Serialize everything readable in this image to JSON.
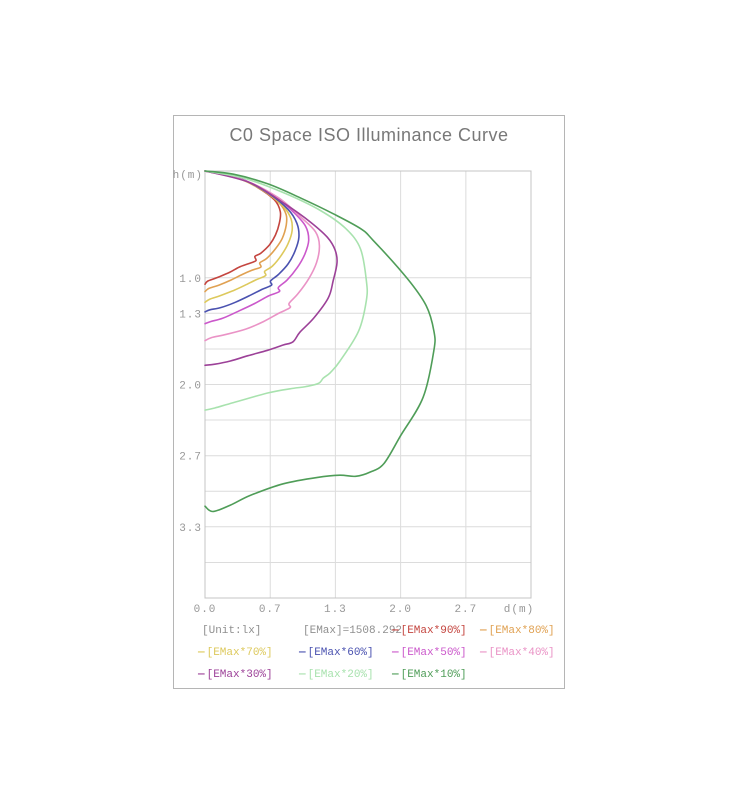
{
  "panel": {
    "title": "C0 Space ISO Illuminance Curve"
  },
  "chart_data": {
    "type": "line",
    "title": "C0 Space ISO Illuminance Curve",
    "xlabel": "d(m)",
    "ylabel": "h(m)",
    "xlim": [
      0,
      3.333
    ],
    "ylim": [
      0,
      4.0
    ],
    "y_axis_downward": true,
    "grid": true,
    "legend_position": "bottom",
    "x_ticks": [
      {
        "v": 0,
        "label": "0.0"
      },
      {
        "v": 0.667,
        "label": "0.7"
      },
      {
        "v": 1.333,
        "label": "1.3"
      },
      {
        "v": 2.0,
        "label": "2.0"
      },
      {
        "v": 2.667,
        "label": "2.7"
      }
    ],
    "y_ticks": [
      {
        "v": 1.0,
        "label": "1.0"
      },
      {
        "v": 1.333,
        "label": "1.3"
      },
      {
        "v": 2.0,
        "label": "2.0"
      },
      {
        "v": 2.667,
        "label": "2.7"
      },
      {
        "v": 3.333,
        "label": "3.3"
      }
    ],
    "x_gridlines": [
      0.667,
      1.333,
      2.0,
      2.667
    ],
    "y_gridlines": [
      1.0,
      1.333,
      1.667,
      2.0,
      2.333,
      2.667,
      3.0,
      3.333,
      3.667
    ],
    "annotations": {
      "unit": "[Unit:lx]",
      "emax": "[EMax]=1508.292"
    },
    "series": [
      {
        "name": "[EMax*90%]",
        "color": "#c4453f",
        "points": [
          [
            0,
            0
          ],
          [
            0.3,
            0.05
          ],
          [
            0.53,
            0.15
          ],
          [
            0.71,
            0.27
          ],
          [
            0.77,
            0.38
          ],
          [
            0.76,
            0.49
          ],
          [
            0.72,
            0.6
          ],
          [
            0.66,
            0.69
          ],
          [
            0.57,
            0.77
          ],
          [
            0.51,
            0.8
          ],
          [
            0.52,
            0.84
          ],
          [
            0.44,
            0.87
          ],
          [
            0.35,
            0.9
          ],
          [
            0.25,
            0.95
          ],
          [
            0.12,
            1.0
          ],
          [
            0.03,
            1.03
          ],
          [
            0,
            1.06
          ]
        ]
      },
      {
        "name": "[EMax*80%]",
        "color": "#e0a152",
        "points": [
          [
            0,
            0
          ],
          [
            0.32,
            0.06
          ],
          [
            0.57,
            0.17
          ],
          [
            0.76,
            0.3
          ],
          [
            0.83,
            0.41
          ],
          [
            0.83,
            0.51
          ],
          [
            0.79,
            0.63
          ],
          [
            0.72,
            0.73
          ],
          [
            0.63,
            0.82
          ],
          [
            0.56,
            0.86
          ],
          [
            0.57,
            0.9
          ],
          [
            0.48,
            0.93
          ],
          [
            0.38,
            0.97
          ],
          [
            0.27,
            1.02
          ],
          [
            0.14,
            1.07
          ],
          [
            0.04,
            1.1
          ],
          [
            0,
            1.13
          ]
        ]
      },
      {
        "name": "[EMax*70%]",
        "color": "#ddc95c",
        "points": [
          [
            0,
            0
          ],
          [
            0.34,
            0.07
          ],
          [
            0.61,
            0.19
          ],
          [
            0.8,
            0.33
          ],
          [
            0.88,
            0.45
          ],
          [
            0.89,
            0.56
          ],
          [
            0.85,
            0.68
          ],
          [
            0.78,
            0.79
          ],
          [
            0.69,
            0.89
          ],
          [
            0.61,
            0.94
          ],
          [
            0.62,
            0.98
          ],
          [
            0.52,
            1.02
          ],
          [
            0.41,
            1.07
          ],
          [
            0.29,
            1.12
          ],
          [
            0.15,
            1.17
          ],
          [
            0.05,
            1.2
          ],
          [
            0,
            1.23
          ]
        ]
      },
      {
        "name": "[EMax*60%]",
        "color": "#4a52b0",
        "points": [
          [
            0,
            0
          ],
          [
            0.36,
            0.07
          ],
          [
            0.65,
            0.21
          ],
          [
            0.85,
            0.36
          ],
          [
            0.94,
            0.49
          ],
          [
            0.96,
            0.62
          ],
          [
            0.92,
            0.75
          ],
          [
            0.85,
            0.87
          ],
          [
            0.75,
            0.97
          ],
          [
            0.67,
            1.03
          ],
          [
            0.68,
            1.07
          ],
          [
            0.58,
            1.11
          ],
          [
            0.45,
            1.17
          ],
          [
            0.31,
            1.23
          ],
          [
            0.16,
            1.28
          ],
          [
            0.05,
            1.3
          ],
          [
            0,
            1.32
          ]
        ]
      },
      {
        "name": "[EMax*50%]",
        "color": "#cb58cb",
        "points": [
          [
            0,
            0
          ],
          [
            0.38,
            0.08
          ],
          [
            0.69,
            0.22
          ],
          [
            0.91,
            0.39
          ],
          [
            1.03,
            0.52
          ],
          [
            1.06,
            0.65
          ],
          [
            1.02,
            0.78
          ],
          [
            0.94,
            0.91
          ],
          [
            0.84,
            1.02
          ],
          [
            0.75,
            1.09
          ],
          [
            0.76,
            1.13
          ],
          [
            0.65,
            1.17
          ],
          [
            0.51,
            1.24
          ],
          [
            0.35,
            1.31
          ],
          [
            0.18,
            1.38
          ],
          [
            0.06,
            1.41
          ],
          [
            0,
            1.43
          ]
        ]
      },
      {
        "name": "[EMax*40%]",
        "color": "#ea93c6",
        "points": [
          [
            0,
            0
          ],
          [
            0.41,
            0.09
          ],
          [
            0.75,
            0.25
          ],
          [
            0.99,
            0.44
          ],
          [
            1.13,
            0.57
          ],
          [
            1.17,
            0.7
          ],
          [
            1.14,
            0.86
          ],
          [
            1.06,
            1.01
          ],
          [
            0.95,
            1.15
          ],
          [
            0.86,
            1.24
          ],
          [
            0.87,
            1.28
          ],
          [
            0.76,
            1.33
          ],
          [
            0.6,
            1.41
          ],
          [
            0.42,
            1.48
          ],
          [
            0.22,
            1.53
          ],
          [
            0.07,
            1.56
          ],
          [
            0,
            1.59
          ]
        ]
      },
      {
        "name": "[EMax*30%]",
        "color": "#9c4198",
        "points": [
          [
            0,
            0
          ],
          [
            0.46,
            0.11
          ],
          [
            0.82,
            0.31
          ],
          [
            1.08,
            0.48
          ],
          [
            1.25,
            0.62
          ],
          [
            1.33,
            0.74
          ],
          [
            1.35,
            0.86
          ],
          [
            1.31,
            1.03
          ],
          [
            1.26,
            1.19
          ],
          [
            1.11,
            1.38
          ],
          [
            0.97,
            1.51
          ],
          [
            0.9,
            1.6
          ],
          [
            0.8,
            1.63
          ],
          [
            0.64,
            1.68
          ],
          [
            0.44,
            1.73
          ],
          [
            0.26,
            1.78
          ],
          [
            0.1,
            1.81
          ],
          [
            0,
            1.82
          ]
        ]
      },
      {
        "name": "[EMax*20%]",
        "color": "#a8e2ae",
        "points": [
          [
            0,
            0
          ],
          [
            0.41,
            0.07
          ],
          [
            0.82,
            0.21
          ],
          [
            1.18,
            0.37
          ],
          [
            1.44,
            0.54
          ],
          [
            1.59,
            0.73
          ],
          [
            1.65,
            1.03
          ],
          [
            1.65,
            1.21
          ],
          [
            1.57,
            1.5
          ],
          [
            1.38,
            1.78
          ],
          [
            1.28,
            1.89
          ],
          [
            1.21,
            1.94
          ],
          [
            1.16,
            1.99
          ],
          [
            1.03,
            2.02
          ],
          [
            0.87,
            2.04
          ],
          [
            0.64,
            2.08
          ],
          [
            0.29,
            2.17
          ],
          [
            0.1,
            2.22
          ],
          [
            0,
            2.24
          ]
        ]
      },
      {
        "name": "[EMax*10%]",
        "color": "#4f9d58",
        "points": [
          [
            0,
            0
          ],
          [
            0.29,
            0.03
          ],
          [
            0.64,
            0.12
          ],
          [
            0.97,
            0.25
          ],
          [
            1.31,
            0.4
          ],
          [
            1.59,
            0.54
          ],
          [
            1.72,
            0.65
          ],
          [
            2.07,
            1.01
          ],
          [
            2.26,
            1.26
          ],
          [
            2.34,
            1.5
          ],
          [
            2.34,
            1.68
          ],
          [
            2.23,
            2.12
          ],
          [
            2.0,
            2.48
          ],
          [
            1.83,
            2.74
          ],
          [
            1.69,
            2.82
          ],
          [
            1.54,
            2.86
          ],
          [
            1.38,
            2.85
          ],
          [
            1.15,
            2.87
          ],
          [
            0.8,
            2.93
          ],
          [
            0.46,
            3.04
          ],
          [
            0.26,
            3.13
          ],
          [
            0.08,
            3.19
          ],
          [
            0,
            3.14
          ]
        ]
      }
    ]
  },
  "legend": {
    "dash": "—",
    "text_color": "#8f8f8f",
    "rows": [
      [
        {
          "type": "text",
          "label": "[Unit:lx]"
        },
        {
          "type": "text",
          "label": "[EMax]=1508.292"
        },
        {
          "type": "series",
          "series": 0
        },
        {
          "type": "series",
          "series": 1
        }
      ],
      [
        {
          "type": "series",
          "series": 2
        },
        {
          "type": "series",
          "series": 3
        },
        {
          "type": "series",
          "series": 4
        },
        {
          "type": "series",
          "series": 5
        }
      ],
      [
        {
          "type": "series",
          "series": 6
        },
        {
          "type": "series",
          "series": 7
        },
        {
          "type": "series",
          "series": 8
        }
      ]
    ]
  }
}
